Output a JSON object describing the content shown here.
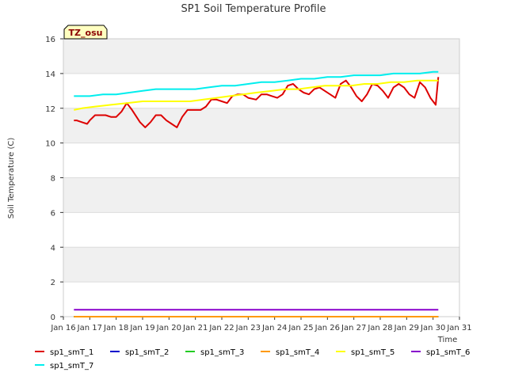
{
  "chart_data": {
    "type": "line",
    "title": "SP1 Soil Temperature Profile",
    "xlabel": "Time",
    "ylabel": "Soil Temperature (C)",
    "ylim": [
      0,
      16
    ],
    "yticks": [
      0,
      2,
      4,
      6,
      8,
      10,
      12,
      14,
      16
    ],
    "xlim": [
      16,
      31
    ],
    "xtick_labels": [
      "Jan 16",
      "Jan 17",
      "Jan 18",
      "Jan 19",
      "Jan 20",
      "Jan 21",
      "Jan 22",
      "Jan 23",
      "Jan 24",
      "Jan 25",
      "Jan 26",
      "Jan 27",
      "Jan 28",
      "Jan 29",
      "Jan 30",
      "Jan 31"
    ],
    "grid": "horizontal bands",
    "legend": "bottom",
    "annotation": "TZ_osu",
    "series": [
      {
        "name": "sp1_smT_1",
        "color": "#dd0000",
        "x": [
          16.4,
          16.5,
          16.7,
          16.9,
          17.0,
          17.2,
          17.4,
          17.6,
          17.8,
          18.0,
          18.2,
          18.4,
          18.6,
          18.9,
          19.1,
          19.3,
          19.5,
          19.7,
          19.9,
          20.1,
          20.3,
          20.5,
          20.7,
          20.9,
          21.2,
          21.4,
          21.6,
          21.8,
          22.0,
          22.2,
          22.4,
          22.6,
          22.8,
          23.0,
          23.3,
          23.5,
          23.7,
          23.9,
          24.1,
          24.3,
          24.5,
          24.7,
          24.9,
          25.1,
          25.3,
          25.5,
          25.7,
          25.9,
          26.1,
          26.3,
          26.5,
          26.7,
          26.9,
          27.1,
          27.3,
          27.5,
          27.7,
          27.9,
          28.1,
          28.3,
          28.5,
          28.7,
          28.9,
          29.1,
          29.3,
          29.5,
          29.7,
          29.9,
          30.1,
          30.2
        ],
        "y": [
          11.3,
          11.3,
          11.2,
          11.1,
          11.3,
          11.6,
          11.6,
          11.6,
          11.5,
          11.5,
          11.8,
          12.3,
          11.9,
          11.2,
          10.9,
          11.2,
          11.6,
          11.6,
          11.3,
          11.1,
          10.9,
          11.5,
          11.9,
          11.9,
          11.9,
          12.1,
          12.5,
          12.5,
          12.4,
          12.3,
          12.7,
          12.8,
          12.8,
          12.6,
          12.5,
          12.8,
          12.8,
          12.7,
          12.6,
          12.8,
          13.3,
          13.4,
          13.1,
          12.9,
          12.8,
          13.1,
          13.2,
          13.0,
          12.8,
          12.6,
          13.4,
          13.6,
          13.2,
          12.7,
          12.4,
          12.8,
          13.4,
          13.3,
          13.0,
          12.6,
          13.2,
          13.4,
          13.2,
          12.8,
          12.6,
          13.5,
          13.2,
          12.6,
          12.2,
          13.8
        ]
      },
      {
        "name": "sp1_smT_2",
        "color": "#0000cc",
        "x": [
          16.4,
          30.2
        ],
        "y": [
          0.0,
          0.0
        ]
      },
      {
        "name": "sp1_smT_3",
        "color": "#22cc22",
        "x": [
          16.4,
          30.2
        ],
        "y": [
          0.0,
          0.0
        ]
      },
      {
        "name": "sp1_smT_4",
        "color": "#ff9900",
        "x": [
          16.4,
          30.2
        ],
        "y": [
          0.0,
          0.0
        ]
      },
      {
        "name": "sp1_smT_5",
        "color": "#ffff00",
        "x": [
          16.4,
          16.7,
          17.2,
          17.8,
          18.4,
          19.0,
          19.6,
          20.2,
          20.8,
          21.3,
          21.8,
          22.3,
          22.8,
          23.3,
          23.9,
          24.4,
          24.9,
          25.4,
          25.9,
          26.4,
          26.9,
          27.4,
          27.9,
          28.4,
          28.9,
          29.4,
          29.9,
          30.2
        ],
        "y": [
          11.9,
          12.0,
          12.1,
          12.2,
          12.3,
          12.4,
          12.4,
          12.4,
          12.4,
          12.5,
          12.6,
          12.7,
          12.8,
          12.9,
          13.0,
          13.1,
          13.1,
          13.2,
          13.3,
          13.3,
          13.3,
          13.4,
          13.4,
          13.5,
          13.5,
          13.6,
          13.6,
          13.6
        ]
      },
      {
        "name": "sp1_smT_6",
        "color": "#8800cc",
        "x": [
          16.4,
          30.2
        ],
        "y": [
          0.4,
          0.4
        ]
      },
      {
        "name": "sp1_smT_7",
        "color": "#00eeee",
        "x": [
          16.4,
          17.0,
          17.5,
          18.0,
          18.5,
          19.0,
          19.5,
          20.0,
          20.5,
          21.0,
          21.5,
          22.0,
          22.5,
          23.0,
          23.5,
          24.0,
          24.5,
          25.0,
          25.5,
          26.0,
          26.5,
          27.0,
          27.5,
          28.0,
          28.5,
          29.0,
          29.5,
          30.0,
          30.2
        ],
        "y": [
          12.7,
          12.7,
          12.8,
          12.8,
          12.9,
          13.0,
          13.1,
          13.1,
          13.1,
          13.1,
          13.2,
          13.3,
          13.3,
          13.4,
          13.5,
          13.5,
          13.6,
          13.7,
          13.7,
          13.8,
          13.8,
          13.9,
          13.9,
          13.9,
          14.0,
          14.0,
          14.0,
          14.1,
          14.1
        ]
      }
    ]
  }
}
